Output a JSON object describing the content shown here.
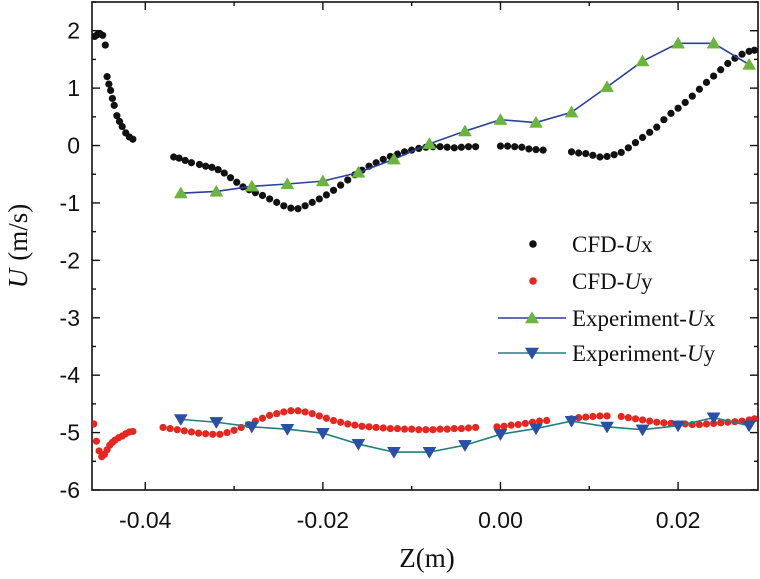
{
  "chart_data": {
    "type": "scatter",
    "xlabel": "Z(m)",
    "ylabel_italic": "U",
    "ylabel_rest": "(m/s)",
    "xlim": [
      -0.046,
      0.029
    ],
    "ylim": [
      -6,
      2.5
    ],
    "x_ticks": [
      {
        "value": -0.04,
        "label": "-0.04"
      },
      {
        "value": -0.02,
        "label": "-0.02"
      },
      {
        "value": 0.0,
        "label": "0.00"
      },
      {
        "value": 0.02,
        "label": "0.02"
      }
    ],
    "y_ticks": [
      {
        "value": 2,
        "label": "2"
      },
      {
        "value": 1,
        "label": "1"
      },
      {
        "value": 0,
        "label": "0"
      },
      {
        "value": -1,
        "label": "-1"
      },
      {
        "value": -2,
        "label": "-2"
      },
      {
        "value": -3,
        "label": "-3"
      },
      {
        "value": -4,
        "label": "-4"
      },
      {
        "value": -5,
        "label": "-5"
      },
      {
        "value": -6,
        "label": "-6"
      }
    ],
    "legend_position": "right-middle",
    "series": [
      {
        "name": "CFD-Ux",
        "legend_prefix": "CFD-",
        "legend_italic": "U",
        "legend_suffix": "x",
        "kind": "dots",
        "color": "#111111",
        "points": [
          [
            -0.0457,
            1.9
          ],
          [
            -0.0454,
            1.93
          ],
          [
            -0.0451,
            1.95
          ],
          [
            -0.0448,
            1.92
          ],
          [
            -0.0445,
            1.75
          ],
          [
            -0.0443,
            1.2
          ],
          [
            -0.0441,
            1.07
          ],
          [
            -0.0439,
            0.96
          ],
          [
            -0.0437,
            0.82
          ],
          [
            -0.0435,
            0.7
          ],
          [
            -0.0432,
            0.52
          ],
          [
            -0.0429,
            0.42
          ],
          [
            -0.0426,
            0.33
          ],
          [
            -0.0422,
            0.22
          ],
          [
            -0.0418,
            0.15
          ],
          [
            -0.0414,
            0.11
          ],
          [
            -0.0368,
            -0.2
          ],
          [
            -0.0362,
            -0.22
          ],
          [
            -0.0355,
            -0.26
          ],
          [
            -0.0348,
            -0.3
          ],
          [
            -0.0339,
            -0.33
          ],
          [
            -0.0332,
            -0.36
          ],
          [
            -0.0325,
            -0.38
          ],
          [
            -0.0318,
            -0.42
          ],
          [
            -0.0311,
            -0.48
          ],
          [
            -0.0304,
            -0.56
          ],
          [
            -0.0297,
            -0.64
          ],
          [
            -0.029,
            -0.72
          ],
          [
            -0.0283,
            -0.77
          ],
          [
            -0.0276,
            -0.82
          ],
          [
            -0.0268,
            -0.87
          ],
          [
            -0.026,
            -0.93
          ],
          [
            -0.0252,
            -0.99
          ],
          [
            -0.0244,
            -1.05
          ],
          [
            -0.0236,
            -1.09
          ],
          [
            -0.0228,
            -1.1
          ],
          [
            -0.022,
            -1.05
          ],
          [
            -0.0212,
            -0.99
          ],
          [
            -0.0204,
            -0.93
          ],
          [
            -0.0196,
            -0.86
          ],
          [
            -0.0188,
            -0.78
          ],
          [
            -0.018,
            -0.69
          ],
          [
            -0.0172,
            -0.6
          ],
          [
            -0.0164,
            -0.51
          ],
          [
            -0.0156,
            -0.43
          ],
          [
            -0.0148,
            -0.36
          ],
          [
            -0.014,
            -0.3
          ],
          [
            -0.0132,
            -0.24
          ],
          [
            -0.0124,
            -0.19
          ],
          [
            -0.0116,
            -0.15
          ],
          [
            -0.0108,
            -0.11
          ],
          [
            -0.01,
            -0.08
          ],
          [
            -0.0092,
            -0.05
          ],
          [
            -0.0084,
            -0.03
          ],
          [
            -0.0076,
            -0.02
          ],
          [
            -0.0068,
            -0.02
          ],
          [
            -0.006,
            -0.03
          ],
          [
            -0.0052,
            -0.04
          ],
          [
            -0.0044,
            -0.03
          ],
          [
            -0.0036,
            -0.02
          ],
          [
            -0.0028,
            -0.02
          ],
          [
            0.0,
            -0.01
          ],
          [
            0.0008,
            -0.01
          ],
          [
            0.0016,
            -0.02
          ],
          [
            0.0024,
            -0.03
          ],
          [
            0.0032,
            -0.06
          ],
          [
            0.004,
            -0.07
          ],
          [
            0.0048,
            -0.08
          ],
          [
            0.008,
            -0.11
          ],
          [
            0.0088,
            -0.13
          ],
          [
            0.0096,
            -0.14
          ],
          [
            0.0104,
            -0.17
          ],
          [
            0.0112,
            -0.2
          ],
          [
            0.012,
            -0.19
          ],
          [
            0.0128,
            -0.16
          ],
          [
            0.0136,
            -0.12
          ],
          [
            0.0144,
            -0.04
          ],
          [
            0.0152,
            0.05
          ],
          [
            0.016,
            0.14
          ],
          [
            0.0168,
            0.23
          ],
          [
            0.0176,
            0.32
          ],
          [
            0.0184,
            0.45
          ],
          [
            0.0192,
            0.56
          ],
          [
            0.02,
            0.65
          ],
          [
            0.0208,
            0.75
          ],
          [
            0.0216,
            0.86
          ],
          [
            0.0224,
            0.98
          ],
          [
            0.0232,
            1.1
          ],
          [
            0.024,
            1.21
          ],
          [
            0.0248,
            1.32
          ],
          [
            0.0256,
            1.43
          ],
          [
            0.0264,
            1.52
          ],
          [
            0.0272,
            1.59
          ],
          [
            0.028,
            1.64
          ],
          [
            0.0286,
            1.66
          ]
        ]
      },
      {
        "name": "CFD-Uy",
        "legend_prefix": "CFD-",
        "legend_italic": "U",
        "legend_suffix": "y",
        "kind": "dots",
        "color": "#e8251f",
        "points": [
          [
            -0.0458,
            -4.85
          ],
          [
            -0.0455,
            -5.15
          ],
          [
            -0.0452,
            -5.32
          ],
          [
            -0.0449,
            -5.42
          ],
          [
            -0.0446,
            -5.38
          ],
          [
            -0.0443,
            -5.3
          ],
          [
            -0.044,
            -5.22
          ],
          [
            -0.0437,
            -5.17
          ],
          [
            -0.0434,
            -5.13
          ],
          [
            -0.043,
            -5.09
          ],
          [
            -0.0426,
            -5.06
          ],
          [
            -0.0422,
            -5.02
          ],
          [
            -0.0418,
            -4.99
          ],
          [
            -0.0414,
            -4.98
          ],
          [
            -0.038,
            -4.91
          ],
          [
            -0.0372,
            -4.93
          ],
          [
            -0.0364,
            -4.95
          ],
          [
            -0.0356,
            -4.97
          ],
          [
            -0.0348,
            -4.99
          ],
          [
            -0.034,
            -5.01
          ],
          [
            -0.0332,
            -5.02
          ],
          [
            -0.0324,
            -5.03
          ],
          [
            -0.0316,
            -5.03
          ],
          [
            -0.0308,
            -5.0
          ],
          [
            -0.03,
            -4.96
          ],
          [
            -0.0292,
            -4.91
          ],
          [
            -0.0284,
            -4.86
          ],
          [
            -0.0276,
            -4.8
          ],
          [
            -0.0268,
            -4.75
          ],
          [
            -0.026,
            -4.7
          ],
          [
            -0.0252,
            -4.67
          ],
          [
            -0.0244,
            -4.64
          ],
          [
            -0.0236,
            -4.62
          ],
          [
            -0.0228,
            -4.62
          ],
          [
            -0.022,
            -4.64
          ],
          [
            -0.0212,
            -4.67
          ],
          [
            -0.0204,
            -4.71
          ],
          [
            -0.0196,
            -4.75
          ],
          [
            -0.0188,
            -4.79
          ],
          [
            -0.018,
            -4.82
          ],
          [
            -0.0172,
            -4.85
          ],
          [
            -0.0164,
            -4.87
          ],
          [
            -0.0156,
            -4.89
          ],
          [
            -0.0148,
            -4.9
          ],
          [
            -0.014,
            -4.91
          ],
          [
            -0.0132,
            -4.92
          ],
          [
            -0.0124,
            -4.93
          ],
          [
            -0.0116,
            -4.93
          ],
          [
            -0.0108,
            -4.94
          ],
          [
            -0.01,
            -4.94
          ],
          [
            -0.0092,
            -4.95
          ],
          [
            -0.0084,
            -4.95
          ],
          [
            -0.0076,
            -4.95
          ],
          [
            -0.0068,
            -4.94
          ],
          [
            -0.006,
            -4.94
          ],
          [
            -0.0052,
            -4.93
          ],
          [
            -0.0044,
            -4.93
          ],
          [
            -0.0036,
            -4.92
          ],
          [
            -0.0028,
            -4.91
          ],
          [
            -0.0004,
            -4.9
          ],
          [
            0.0004,
            -4.89
          ],
          [
            0.0012,
            -4.87
          ],
          [
            0.002,
            -4.86
          ],
          [
            0.0028,
            -4.84
          ],
          [
            0.0036,
            -4.82
          ],
          [
            0.0044,
            -4.8
          ],
          [
            0.0052,
            -4.79
          ],
          [
            0.008,
            -4.76
          ],
          [
            0.0088,
            -4.74
          ],
          [
            0.0096,
            -4.73
          ],
          [
            0.0104,
            -4.72
          ],
          [
            0.0112,
            -4.71
          ],
          [
            0.012,
            -4.71
          ],
          [
            0.0136,
            -4.72
          ],
          [
            0.0144,
            -4.74
          ],
          [
            0.0152,
            -4.76
          ],
          [
            0.016,
            -4.78
          ],
          [
            0.0168,
            -4.8
          ],
          [
            0.0176,
            -4.82
          ],
          [
            0.0184,
            -4.83
          ],
          [
            0.0192,
            -4.84
          ],
          [
            0.02,
            -4.85
          ],
          [
            0.0208,
            -4.85
          ],
          [
            0.0216,
            -4.86
          ],
          [
            0.0224,
            -4.86
          ],
          [
            0.0232,
            -4.85
          ],
          [
            0.024,
            -4.84
          ],
          [
            0.0248,
            -4.83
          ],
          [
            0.0256,
            -4.82
          ],
          [
            0.0264,
            -4.81
          ],
          [
            0.0272,
            -4.8
          ],
          [
            0.028,
            -4.78
          ],
          [
            0.0286,
            -4.76
          ]
        ]
      },
      {
        "name": "Experiment-Ux",
        "legend_prefix": "Experiment-",
        "legend_italic": "U",
        "legend_suffix": "x",
        "kind": "line-markers",
        "color": "#2a3f9e",
        "marker": "triangle-up",
        "marker_color": "#6ab63d",
        "points": [
          [
            -0.036,
            -0.83
          ],
          [
            -0.032,
            -0.8
          ],
          [
            -0.028,
            -0.71
          ],
          [
            -0.024,
            -0.67
          ],
          [
            -0.02,
            -0.62
          ],
          [
            -0.016,
            -0.47
          ],
          [
            -0.012,
            -0.24
          ],
          [
            -0.008,
            0.03
          ],
          [
            -0.004,
            0.25
          ],
          [
            0.0,
            0.45
          ],
          [
            0.004,
            0.4
          ],
          [
            0.008,
            0.58
          ],
          [
            0.012,
            1.02
          ],
          [
            0.016,
            1.47
          ],
          [
            0.02,
            1.78
          ],
          [
            0.024,
            1.78
          ],
          [
            0.028,
            1.41
          ]
        ]
      },
      {
        "name": "Experiment-Uy",
        "legend_prefix": "Experiment-",
        "legend_italic": "U",
        "legend_suffix": "y",
        "kind": "line-markers",
        "color": "#1f8080",
        "marker": "triangle-down",
        "marker_color": "#2a4fa8",
        "points": [
          [
            -0.036,
            -4.77
          ],
          [
            -0.032,
            -4.82
          ],
          [
            -0.028,
            -4.9
          ],
          [
            -0.024,
            -4.94
          ],
          [
            -0.02,
            -5.01
          ],
          [
            -0.016,
            -5.2
          ],
          [
            -0.012,
            -5.34
          ],
          [
            -0.008,
            -5.34
          ],
          [
            -0.004,
            -5.22
          ],
          [
            0.0,
            -5.03
          ],
          [
            0.004,
            -4.93
          ],
          [
            0.008,
            -4.8
          ],
          [
            0.012,
            -4.9
          ],
          [
            0.016,
            -4.95
          ],
          [
            0.02,
            -4.88
          ],
          [
            0.024,
            -4.74
          ],
          [
            0.028,
            -4.88
          ]
        ]
      }
    ]
  }
}
